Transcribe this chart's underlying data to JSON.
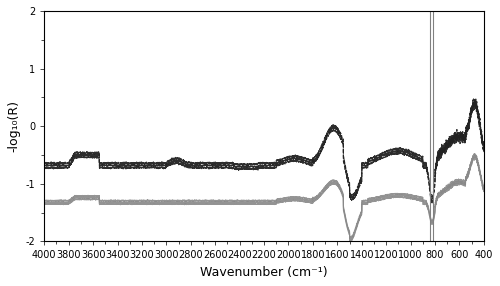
{
  "title": "",
  "xlabel": "Wavenumber (cm⁻¹)",
  "ylabel": "-log₁₀(R)",
  "xlim": [
    4000,
    400
  ],
  "ylim": [
    -2,
    2
  ],
  "yticks": [
    -2,
    -1,
    0,
    1,
    2
  ],
  "xticks": [
    4000,
    3800,
    3600,
    3400,
    3200,
    3000,
    2800,
    2600,
    2400,
    2200,
    2000,
    1800,
    1600,
    1400,
    1200,
    1000,
    800,
    600,
    400
  ],
  "vline1": 838,
  "vline2": 818,
  "background_color": "#ffffff",
  "dashed_color": "#222222",
  "solid_color": "#888888"
}
